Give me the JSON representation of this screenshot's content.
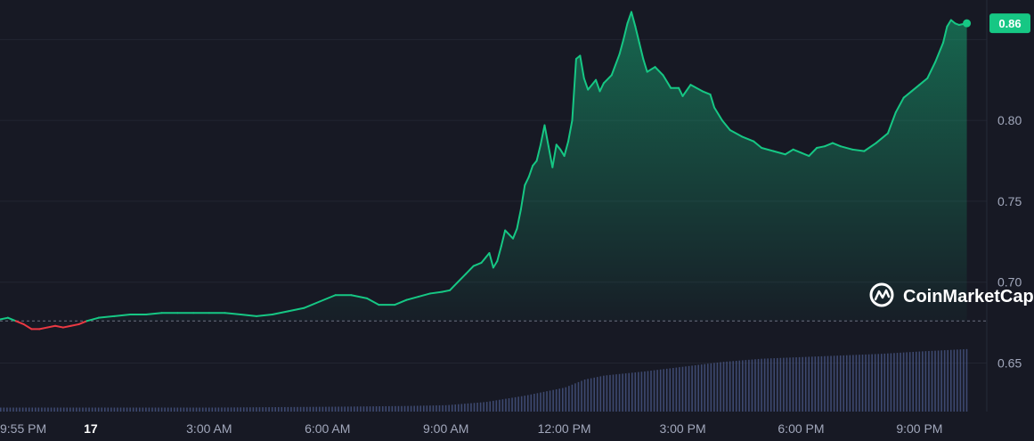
{
  "chart_data": {
    "type": "area",
    "title": "",
    "xlabel": "",
    "ylabel": "",
    "ylim": [
      0.62,
      0.87
    ],
    "y_ticks": [
      "0.65",
      "0.70",
      "0.75",
      "0.80"
    ],
    "y_tick_values": [
      0.65,
      0.7,
      0.75,
      0.8
    ],
    "x_ticks": [
      "9:55 PM",
      "17",
      "3:00 AM",
      "6:00 AM",
      "9:00 AM",
      "12:00 PM",
      "3:00 PM",
      "6:00 PM",
      "9:00 PM"
    ],
    "x_tick_hours": [
      -2.08,
      0,
      3,
      6,
      9,
      12,
      15,
      18,
      21
    ],
    "x_unit": "hours since 00:00 of the 17th",
    "reference_price": 0.676,
    "last_price": 0.86,
    "last_price_label": "0.86",
    "colors": {
      "up": "#16c784",
      "down": "#ea3943",
      "volume": "#4b5a8a",
      "background": "#171924",
      "grid": "#222531"
    },
    "series": [
      {
        "values": [
          [
            -2.3,
            0.677
          ],
          [
            -2.1,
            0.678
          ],
          [
            -1.9,
            0.676
          ],
          [
            -1.7,
            0.674
          ],
          [
            -1.5,
            0.671
          ],
          [
            -1.3,
            0.671
          ],
          [
            -1.1,
            0.672
          ],
          [
            -0.9,
            0.673
          ],
          [
            -0.7,
            0.672
          ],
          [
            -0.5,
            0.673
          ],
          [
            -0.3,
            0.674
          ],
          [
            -0.1,
            0.676
          ],
          [
            0.2,
            0.678
          ],
          [
            0.6,
            0.679
          ],
          [
            1.0,
            0.68
          ],
          [
            1.4,
            0.68
          ],
          [
            1.8,
            0.681
          ],
          [
            2.2,
            0.681
          ],
          [
            2.6,
            0.681
          ],
          [
            3.0,
            0.681
          ],
          [
            3.4,
            0.681
          ],
          [
            3.8,
            0.68
          ],
          [
            4.2,
            0.679
          ],
          [
            4.6,
            0.68
          ],
          [
            5.0,
            0.682
          ],
          [
            5.4,
            0.684
          ],
          [
            5.8,
            0.688
          ],
          [
            6.2,
            0.692
          ],
          [
            6.6,
            0.692
          ],
          [
            7.0,
            0.69
          ],
          [
            7.3,
            0.686
          ],
          [
            7.7,
            0.686
          ],
          [
            8.0,
            0.689
          ],
          [
            8.3,
            0.691
          ],
          [
            8.6,
            0.693
          ],
          [
            8.9,
            0.694
          ],
          [
            9.1,
            0.695
          ],
          [
            9.3,
            0.7
          ],
          [
            9.5,
            0.705
          ],
          [
            9.7,
            0.71
          ],
          [
            9.9,
            0.712
          ],
          [
            10.0,
            0.715
          ],
          [
            10.1,
            0.718
          ],
          [
            10.2,
            0.709
          ],
          [
            10.3,
            0.713
          ],
          [
            10.4,
            0.722
          ],
          [
            10.5,
            0.732
          ],
          [
            10.7,
            0.727
          ],
          [
            10.8,
            0.733
          ],
          [
            10.9,
            0.745
          ],
          [
            11.0,
            0.76
          ],
          [
            11.1,
            0.765
          ],
          [
            11.2,
            0.772
          ],
          [
            11.3,
            0.775
          ],
          [
            11.4,
            0.785
          ],
          [
            11.5,
            0.797
          ],
          [
            11.6,
            0.784
          ],
          [
            11.7,
            0.771
          ],
          [
            11.8,
            0.785
          ],
          [
            11.9,
            0.782
          ],
          [
            12.0,
            0.778
          ],
          [
            12.1,
            0.787
          ],
          [
            12.2,
            0.8
          ],
          [
            12.3,
            0.838
          ],
          [
            12.4,
            0.84
          ],
          [
            12.5,
            0.826
          ],
          [
            12.6,
            0.819
          ],
          [
            12.8,
            0.825
          ],
          [
            12.9,
            0.818
          ],
          [
            13.0,
            0.823
          ],
          [
            13.2,
            0.828
          ],
          [
            13.4,
            0.841
          ],
          [
            13.5,
            0.85
          ],
          [
            13.6,
            0.86
          ],
          [
            13.7,
            0.867
          ],
          [
            13.8,
            0.858
          ],
          [
            13.9,
            0.848
          ],
          [
            14.0,
            0.838
          ],
          [
            14.1,
            0.83
          ],
          [
            14.3,
            0.833
          ],
          [
            14.5,
            0.828
          ],
          [
            14.7,
            0.82
          ],
          [
            14.9,
            0.82
          ],
          [
            15.0,
            0.815
          ],
          [
            15.2,
            0.822
          ],
          [
            15.5,
            0.818
          ],
          [
            15.7,
            0.816
          ],
          [
            15.8,
            0.808
          ],
          [
            16.0,
            0.8
          ],
          [
            16.2,
            0.794
          ],
          [
            16.5,
            0.79
          ],
          [
            16.8,
            0.787
          ],
          [
            17.0,
            0.783
          ],
          [
            17.3,
            0.781
          ],
          [
            17.6,
            0.779
          ],
          [
            17.8,
            0.782
          ],
          [
            18.0,
            0.78
          ],
          [
            18.2,
            0.778
          ],
          [
            18.4,
            0.783
          ],
          [
            18.6,
            0.784
          ],
          [
            18.8,
            0.786
          ],
          [
            19.0,
            0.784
          ],
          [
            19.3,
            0.782
          ],
          [
            19.6,
            0.781
          ],
          [
            19.9,
            0.786
          ],
          [
            20.2,
            0.792
          ],
          [
            20.4,
            0.805
          ],
          [
            20.6,
            0.814
          ],
          [
            20.8,
            0.818
          ],
          [
            21.0,
            0.822
          ],
          [
            21.2,
            0.826
          ],
          [
            21.4,
            0.836
          ],
          [
            21.6,
            0.848
          ],
          [
            21.7,
            0.858
          ],
          [
            21.8,
            0.862
          ],
          [
            21.9,
            0.86
          ],
          [
            22.0,
            0.859
          ],
          [
            22.2,
            0.86
          ]
        ]
      }
    ],
    "volume": [
      [
        -2.3,
        0.05
      ],
      [
        0,
        0.05
      ],
      [
        3,
        0.05
      ],
      [
        6,
        0.06
      ],
      [
        8,
        0.07
      ],
      [
        9,
        0.08
      ],
      [
        10,
        0.12
      ],
      [
        11,
        0.2
      ],
      [
        12,
        0.3
      ],
      [
        12.5,
        0.4
      ],
      [
        13,
        0.45
      ],
      [
        14,
        0.5
      ],
      [
        15,
        0.56
      ],
      [
        16,
        0.62
      ],
      [
        17,
        0.66
      ],
      [
        18,
        0.68
      ],
      [
        19,
        0.7
      ],
      [
        20,
        0.72
      ],
      [
        21,
        0.75
      ],
      [
        22.2,
        0.78
      ]
    ]
  },
  "watermark": {
    "icon": "coinmarketcap-logo-icon",
    "text": "CoinMarketCap"
  }
}
